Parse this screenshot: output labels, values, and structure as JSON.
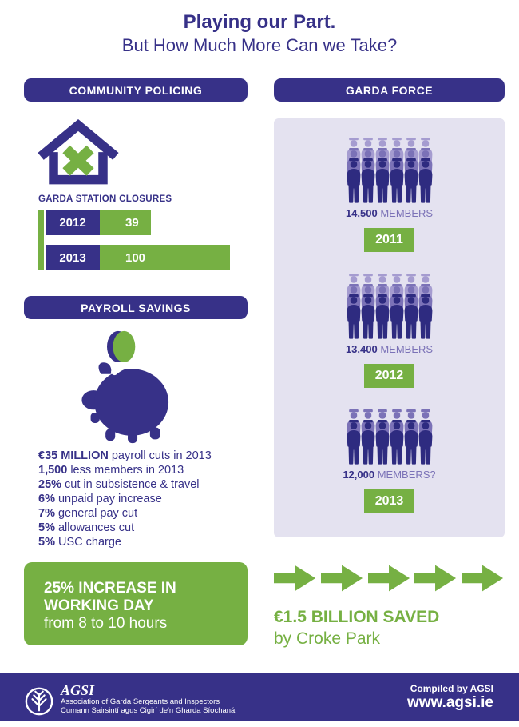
{
  "colors": {
    "blue": "#373188",
    "green": "#76b043",
    "panel": "#e4e2f0",
    "people_light": "#a59cd0",
    "people_mid": "#7b72b7",
    "people_dark": "#2e2b80",
    "members_muted": "#7b72b7"
  },
  "header": {
    "title": "Playing our Part.",
    "subtitle": "But How Much More Can we Take?"
  },
  "community_policing": {
    "header": "COMMUNITY POLICING",
    "house_icon": "house-with-x-icon",
    "closures_label": "GARDA STATION CLOSURES"
  },
  "garda_force": {
    "header": "GARDA FORCE"
  },
  "payroll_savings": {
    "header": "PAYROLL SAVINGS",
    "piggy_icon": "piggy-bank-icon",
    "coin_icon": "coin-icon",
    "stats": [
      {
        "value": "€35 MILLION",
        "text": "payroll cuts in 2013"
      },
      {
        "value": "1,500",
        "text": "less members in 2013"
      },
      {
        "value": "25%",
        "text": "cut in subsistence & travel"
      },
      {
        "value": "6%",
        "text": "unpaid pay increase"
      },
      {
        "value": "7%",
        "text": "general pay cut"
      },
      {
        "value": "5%",
        "text": "allowances cut"
      },
      {
        "value": "5%",
        "text": "USC charge"
      }
    ]
  },
  "working_day": {
    "line1": "25% INCREASE IN",
    "line2": "WORKING DAY",
    "line3": "from 8 to 10 hours"
  },
  "croke_park": {
    "arrow_icon": "right-arrow-icon",
    "arrow_count": 5,
    "headline": "€1.5 BILLION SAVED",
    "subline": "by Croke Park"
  },
  "footer": {
    "logo_icon": "agsi-tree-logo-icon",
    "org_abbr": "AGSI",
    "org_line1": "Association of Garda Sergeants and Inspectors",
    "org_line2": "Cumann Sairsintí agus Cigirí de'n Gharda Síochaná",
    "compiled": "Compiled by AGSI",
    "website": "www.agsi.ie"
  },
  "chart_data": [
    {
      "type": "bar",
      "title": "GARDA STATION CLOSURES",
      "orientation": "horizontal",
      "categories": [
        "2012",
        "2013"
      ],
      "values": [
        39,
        100
      ],
      "bar_color": "#76b043",
      "category_box_color": "#373188",
      "value_labels_on_bars": true,
      "axis_color": "#76b043",
      "xlim": [
        0,
        100
      ]
    },
    {
      "type": "pictogram",
      "title": "GARDA FORCE",
      "categories": [
        "2011",
        "2012",
        "2013"
      ],
      "values": [
        14500,
        13400,
        12000
      ],
      "value_labels": [
        "14,500",
        "13,400",
        "12,000"
      ],
      "unit_labels": [
        "MEMBERS",
        "MEMBERS",
        "MEMBERS?"
      ],
      "figure_rows": [
        3,
        3,
        2
      ],
      "figures_per_row": 6,
      "figure_colors": [
        "#a59cd0",
        "#7b72b7",
        "#2e2b80"
      ],
      "year_box_color": "#76b043"
    }
  ]
}
